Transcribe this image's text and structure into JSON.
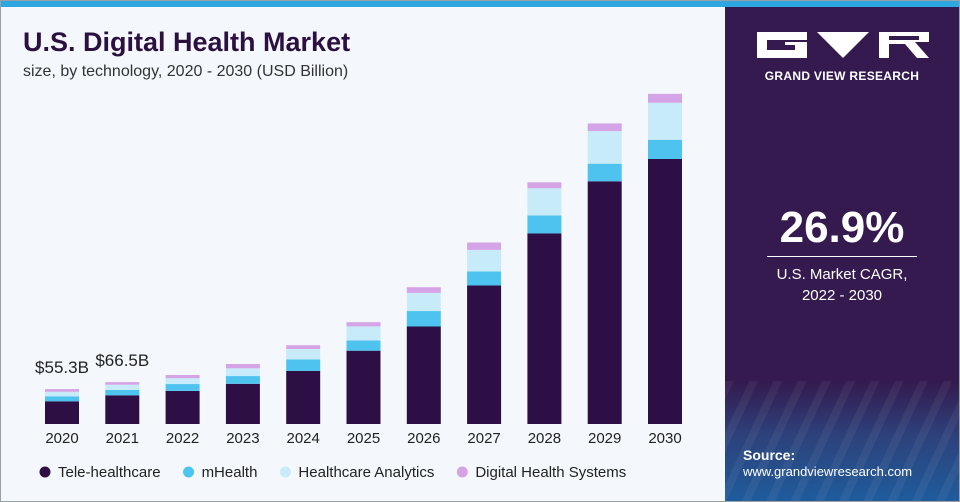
{
  "title": "U.S. Digital Health Market",
  "subtitle": "size, by technology, 2020 - 2030 (USD Billion)",
  "brand": {
    "name": "GRAND VIEW RESEARCH"
  },
  "stat": {
    "value": "26.9%",
    "label_line1": "U.S. Market CAGR,",
    "label_line2": "2022 - 2030"
  },
  "source": {
    "label": "Source:",
    "url": "www.grandviewresearch.com"
  },
  "colors": {
    "accent_bar": "#2ea7e0",
    "panel": "#341a4e"
  },
  "chart_data": {
    "type": "bar",
    "stacked": true,
    "categories": [
      "2020",
      "2021",
      "2022",
      "2023",
      "2024",
      "2025",
      "2026",
      "2027",
      "2028",
      "2029",
      "2030"
    ],
    "series": [
      {
        "name": "Tele-healthcare",
        "color": "#2d0f45",
        "values": [
          36.0,
          45.5,
          52.4,
          63.8,
          84.2,
          116.3,
          154.6,
          219.8,
          302.5,
          385.0,
          420.5
        ]
      },
      {
        "name": "mHealth",
        "color": "#4fc3ef",
        "values": [
          8.0,
          8.4,
          11.0,
          12.3,
          18.4,
          16.3,
          24.6,
          22.3,
          28.5,
          27.9,
          30.4
        ]
      },
      {
        "name": "Healthcare Analytics",
        "color": "#c7ebf8",
        "values": [
          7.0,
          8.4,
          9.3,
          12.3,
          16.3,
          22.2,
          28.8,
          34.1,
          42.9,
          51.7,
          58.6
        ]
      },
      {
        "name": "Digital Health Systems",
        "color": "#d4a4e6",
        "values": [
          4.3,
          4.2,
          5.0,
          6.8,
          6.1,
          6.7,
          9.0,
          11.8,
          9.5,
          12.2,
          14.3
        ]
      }
    ],
    "bar_labels": [
      {
        "category": "2020",
        "text": "$55.3B"
      },
      {
        "category": "2021",
        "text": "$66.5B"
      }
    ],
    "ylim": [
      0,
      560
    ],
    "grid": false,
    "legend_position": "bottom"
  }
}
